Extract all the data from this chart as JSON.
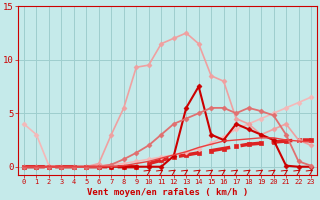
{
  "xlabel": "Vent moyen/en rafales ( km/h )",
  "xlim": [
    -0.5,
    23.5
  ],
  "ylim": [
    -0.8,
    15
  ],
  "yticks": [
    0,
    5,
    10,
    15
  ],
  "xticks": [
    0,
    1,
    2,
    3,
    4,
    5,
    6,
    7,
    8,
    9,
    10,
    11,
    12,
    13,
    14,
    15,
    16,
    17,
    18,
    19,
    20,
    21,
    22,
    23
  ],
  "bg_color": "#c5eaea",
  "grid_color": "#9ecece",
  "series": [
    {
      "x": [
        0,
        1,
        2,
        3,
        4,
        5,
        6,
        7,
        8,
        9,
        10,
        11,
        12,
        13,
        14,
        15,
        16,
        17,
        18,
        19,
        20,
        21,
        22,
        23
      ],
      "y": [
        0,
        0,
        0,
        0,
        0,
        0,
        0,
        0,
        0,
        0,
        0.3,
        0.6,
        0.9,
        1.1,
        1.3,
        1.5,
        1.7,
        1.9,
        2.1,
        2.2,
        2.3,
        2.4,
        2.5,
        2.5
      ],
      "color": "#dd2222",
      "lw": 2.5,
      "marker": "s",
      "ms": 2.5,
      "dashes": [
        6,
        3
      ]
    },
    {
      "x": [
        0,
        1,
        2,
        3,
        4,
        5,
        6,
        7,
        8,
        9,
        10,
        11,
        12,
        13,
        14,
        15,
        16,
        17,
        18,
        19,
        20,
        21,
        22,
        23
      ],
      "y": [
        4.0,
        3.0,
        0.1,
        0.0,
        0.0,
        0.0,
        0.1,
        0.2,
        0.3,
        0.5,
        0.7,
        0.9,
        1.1,
        1.4,
        1.7,
        2.2,
        2.8,
        3.5,
        4.0,
        4.5,
        5.0,
        5.5,
        6.0,
        6.5
      ],
      "color": "#f5b8b8",
      "lw": 1.2,
      "marker": "D",
      "ms": 2.5,
      "dashes": []
    },
    {
      "x": [
        0,
        1,
        2,
        3,
        4,
        5,
        6,
        7,
        8,
        9,
        10,
        11,
        12,
        13,
        14,
        15,
        16,
        17,
        18,
        19,
        20,
        21,
        22,
        23
      ],
      "y": [
        0,
        0,
        0,
        0,
        0,
        0,
        0.3,
        3.0,
        5.5,
        9.3,
        9.5,
        11.5,
        12.0,
        12.5,
        11.5,
        8.5,
        8.0,
        4.5,
        4.0,
        3.0,
        3.5,
        4.0,
        2.5,
        2.0
      ],
      "color": "#f0a0a0",
      "lw": 1.2,
      "marker": "D",
      "ms": 2.5,
      "dashes": []
    },
    {
      "x": [
        0,
        1,
        2,
        3,
        4,
        5,
        6,
        7,
        8,
        9,
        10,
        11,
        12,
        13,
        14,
        15,
        16,
        17,
        18,
        19,
        20,
        21,
        22,
        23
      ],
      "y": [
        0,
        0,
        0,
        0,
        0,
        0,
        0,
        0,
        0,
        0,
        0,
        0,
        1.0,
        5.5,
        7.5,
        3.0,
        2.5,
        4.0,
        3.5,
        3.0,
        2.5,
        0.1,
        0.0,
        0.0
      ],
      "color": "#cc0000",
      "lw": 1.5,
      "marker": "D",
      "ms": 2.5,
      "dashes": []
    },
    {
      "x": [
        0,
        1,
        2,
        3,
        4,
        5,
        6,
        7,
        8,
        9,
        10,
        11,
        12,
        13,
        14,
        15,
        16,
        17,
        18,
        19,
        20,
        21,
        22,
        23
      ],
      "y": [
        0,
        0,
        0,
        0,
        0,
        0,
        0,
        0.2,
        0.7,
        1.3,
        2.0,
        3.0,
        4.0,
        4.5,
        5.0,
        5.5,
        5.5,
        5.0,
        5.5,
        5.2,
        4.8,
        3.0,
        0.5,
        0.1
      ],
      "color": "#e07070",
      "lw": 1.3,
      "marker": "D",
      "ms": 2.5,
      "dashes": []
    },
    {
      "x": [
        0,
        1,
        2,
        3,
        4,
        5,
        6,
        7,
        8,
        9,
        10,
        11,
        12,
        13,
        14,
        15,
        16,
        17,
        18,
        19,
        20,
        21,
        22,
        23
      ],
      "y": [
        0,
        0,
        0,
        0,
        0,
        0,
        0,
        0,
        0.1,
        0.3,
        0.5,
        0.8,
        1.1,
        1.4,
        1.8,
        2.1,
        2.4,
        2.5,
        2.6,
        2.7,
        2.7,
        2.5,
        2.4,
        2.3
      ],
      "color": "#e84040",
      "lw": 1.0,
      "marker": null,
      "ms": 0,
      "dashes": []
    }
  ],
  "wind_arrows": {
    "x_positions": [
      10,
      11,
      12,
      13,
      14,
      15,
      16,
      17,
      18,
      19,
      20,
      21,
      22,
      23
    ],
    "y": -0.55,
    "color": "#cc0000"
  }
}
